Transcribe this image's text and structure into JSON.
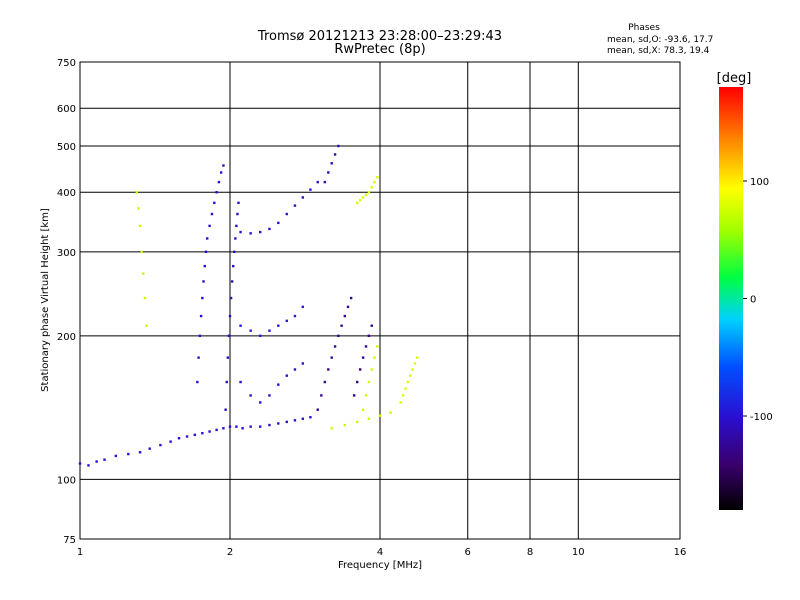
{
  "chart_data": {
    "type": "scatter",
    "title": "Tromsø 20121213 23:28:00–23:29:43",
    "subtitle": "RwPretec (8p)",
    "xlabel": "Frequency [MHz]",
    "ylabel": "Stationary phase Virtual Height [km]",
    "x_scale": "log",
    "y_scale": "log",
    "xlim": [
      1,
      16
    ],
    "ylim": [
      75,
      750
    ],
    "x_ticks": [
      "1",
      "2",
      "4",
      "6",
      "8",
      "10",
      "16"
    ],
    "x_tick_values": [
      1,
      2,
      4,
      6,
      8,
      10,
      16
    ],
    "y_ticks": [
      "75",
      "100",
      "200",
      "300",
      "400",
      "500",
      "600",
      "750"
    ],
    "y_tick_values": [
      75,
      100,
      200,
      300,
      400,
      500,
      600,
      750
    ],
    "grid": true,
    "legend": {
      "heading": "Phases",
      "lines": [
        "mean, sd,O: -93.6, 17.7",
        "mean, sd,X:  78.3, 19.4"
      ],
      "placement": "top-right"
    },
    "colorbar": {
      "label": "[deg]",
      "range": [
        -180,
        180
      ],
      "ticks": [
        "100",
        "0",
        "-100"
      ],
      "tick_values": [
        100,
        0,
        -100
      ]
    },
    "traces": [
      {
        "phase": -100,
        "points": [
          [
            1.0,
            108
          ],
          [
            1.04,
            107
          ],
          [
            1.08,
            109
          ],
          [
            1.12,
            110
          ],
          [
            1.18,
            112
          ],
          [
            1.25,
            113
          ],
          [
            1.32,
            114
          ],
          [
            1.38,
            116
          ],
          [
            1.45,
            118
          ],
          [
            1.52,
            120
          ],
          [
            1.58,
            122
          ],
          [
            1.64,
            123
          ],
          [
            1.7,
            124
          ],
          [
            1.76,
            125
          ],
          [
            1.82,
            126
          ],
          [
            1.88,
            127
          ],
          [
            1.94,
            128
          ],
          [
            2.0,
            129
          ],
          [
            2.06,
            129
          ],
          [
            2.12,
            128
          ],
          [
            2.2,
            129
          ],
          [
            2.3,
            129
          ],
          [
            2.4,
            130
          ],
          [
            2.5,
            131
          ],
          [
            2.6,
            132
          ],
          [
            2.7,
            133
          ],
          [
            2.8,
            134
          ],
          [
            2.9,
            135
          ]
        ]
      },
      {
        "phase": -100,
        "points": [
          [
            1.72,
            160
          ],
          [
            1.73,
            180
          ],
          [
            1.74,
            200
          ],
          [
            1.75,
            220
          ],
          [
            1.76,
            240
          ],
          [
            1.77,
            260
          ],
          [
            1.78,
            280
          ],
          [
            1.79,
            300
          ],
          [
            1.8,
            320
          ],
          [
            1.82,
            340
          ],
          [
            1.84,
            360
          ],
          [
            1.86,
            380
          ],
          [
            1.88,
            400
          ],
          [
            1.9,
            420
          ],
          [
            1.92,
            440
          ],
          [
            1.94,
            455
          ]
        ]
      },
      {
        "phase": -105,
        "points": [
          [
            1.96,
            140
          ],
          [
            1.97,
            160
          ],
          [
            1.98,
            180
          ],
          [
            1.99,
            200
          ],
          [
            2.0,
            220
          ],
          [
            2.01,
            240
          ],
          [
            2.02,
            260
          ],
          [
            2.03,
            280
          ],
          [
            2.04,
            300
          ],
          [
            2.05,
            320
          ],
          [
            2.06,
            340
          ],
          [
            2.07,
            360
          ],
          [
            2.08,
            380
          ]
        ]
      },
      {
        "phase": -100,
        "points": [
          [
            2.1,
            330
          ],
          [
            2.2,
            328
          ],
          [
            2.3,
            330
          ],
          [
            2.4,
            335
          ],
          [
            2.5,
            345
          ],
          [
            2.6,
            360
          ],
          [
            2.7,
            375
          ],
          [
            2.8,
            390
          ],
          [
            2.9,
            405
          ],
          [
            3.0,
            420
          ]
        ]
      },
      {
        "phase": -95,
        "points": [
          [
            2.1,
            210
          ],
          [
            2.2,
            205
          ],
          [
            2.3,
            200
          ],
          [
            2.4,
            205
          ],
          [
            2.5,
            210
          ],
          [
            2.6,
            215
          ],
          [
            2.7,
            220
          ],
          [
            2.8,
            230
          ]
        ]
      },
      {
        "phase": -100,
        "points": [
          [
            2.1,
            160
          ],
          [
            2.2,
            150
          ],
          [
            2.3,
            145
          ],
          [
            2.4,
            150
          ],
          [
            2.5,
            158
          ],
          [
            2.6,
            165
          ],
          [
            2.7,
            170
          ],
          [
            2.8,
            175
          ]
        ]
      },
      {
        "phase": -125,
        "points": [
          [
            3.0,
            140
          ],
          [
            3.05,
            150
          ],
          [
            3.1,
            160
          ],
          [
            3.15,
            170
          ],
          [
            3.2,
            180
          ],
          [
            3.25,
            190
          ],
          [
            3.3,
            200
          ],
          [
            3.35,
            210
          ],
          [
            3.4,
            220
          ],
          [
            3.45,
            230
          ],
          [
            3.5,
            240
          ]
        ]
      },
      {
        "phase": -130,
        "points": [
          [
            3.55,
            150
          ],
          [
            3.6,
            160
          ],
          [
            3.65,
            170
          ],
          [
            3.7,
            180
          ],
          [
            3.75,
            190
          ],
          [
            3.8,
            200
          ],
          [
            3.85,
            210
          ]
        ]
      },
      {
        "phase": -115,
        "points": [
          [
            3.1,
            420
          ],
          [
            3.15,
            440
          ],
          [
            3.2,
            460
          ],
          [
            3.25,
            480
          ],
          [
            3.3,
            500
          ]
        ]
      },
      {
        "phase": 80,
        "points": [
          [
            3.6,
            380
          ],
          [
            3.65,
            385
          ],
          [
            3.7,
            390
          ],
          [
            3.75,
            395
          ],
          [
            3.8,
            400
          ],
          [
            3.85,
            410
          ],
          [
            3.9,
            420
          ],
          [
            3.95,
            430
          ]
        ]
      },
      {
        "phase": 80,
        "points": [
          [
            4.4,
            145
          ],
          [
            4.45,
            150
          ],
          [
            4.5,
            155
          ],
          [
            4.55,
            160
          ],
          [
            4.6,
            165
          ],
          [
            4.65,
            170
          ],
          [
            4.7,
            175
          ],
          [
            4.75,
            180
          ]
        ]
      },
      {
        "phase": 72,
        "points": [
          [
            3.2,
            128
          ],
          [
            3.4,
            130
          ],
          [
            3.6,
            132
          ],
          [
            3.8,
            134
          ],
          [
            4.0,
            136
          ],
          [
            4.2,
            138
          ]
        ]
      },
      {
        "phase": 70,
        "points": [
          [
            1.3,
            400
          ],
          [
            1.31,
            370
          ],
          [
            1.32,
            340
          ],
          [
            1.33,
            300
          ],
          [
            1.34,
            270
          ],
          [
            1.35,
            240
          ],
          [
            1.36,
            210
          ]
        ]
      },
      {
        "phase": 75,
        "points": [
          [
            3.7,
            140
          ],
          [
            3.75,
            150
          ],
          [
            3.8,
            160
          ],
          [
            3.85,
            170
          ],
          [
            3.9,
            180
          ],
          [
            3.95,
            190
          ]
        ]
      }
    ]
  }
}
